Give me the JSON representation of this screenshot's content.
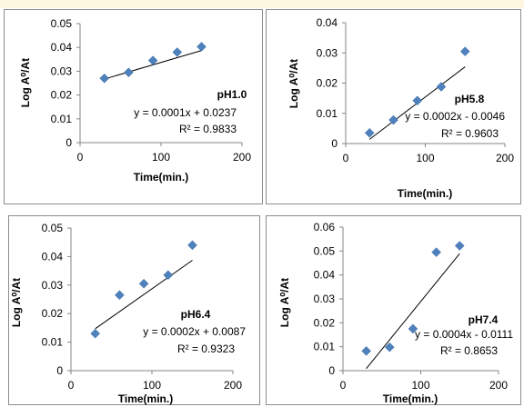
{
  "chart_data": [
    {
      "type": "scatter",
      "id": "ph1",
      "title": "pH1.0",
      "xlabel": "Time(min.)",
      "ylabel": "Log A⁰/At",
      "xlim": [
        0,
        200
      ],
      "ylim": [
        0,
        0.05
      ],
      "xticks": [
        "0",
        "100",
        "200"
      ],
      "yticks": [
        "0",
        "0.01",
        "0.02",
        "0.03",
        "0.04",
        "0.05"
      ],
      "x": [
        30,
        60,
        90,
        120,
        150
      ],
      "y": [
        0.027,
        0.0295,
        0.0345,
        0.038,
        0.0403
      ],
      "trendline": {
        "slope": 0.0001,
        "intercept": 0.0237,
        "x_range": [
          30,
          150
        ]
      },
      "equation": "y = 0.0001x + 0.0237",
      "r2": "R² = 0.9833",
      "marker_color": "#4f81bd",
      "grid": false
    },
    {
      "type": "scatter",
      "id": "ph58",
      "title": "pH5.8",
      "xlabel": "Time(min.)",
      "ylabel": "Log A⁰/At",
      "xlim": [
        0,
        200
      ],
      "ylim": [
        0,
        0.04
      ],
      "xticks": [
        "0",
        "100",
        "200"
      ],
      "yticks": [
        "0",
        "0.01",
        "0.02",
        "0.03",
        "0.04"
      ],
      "x": [
        30,
        60,
        90,
        120,
        150
      ],
      "y": [
        0.0035,
        0.0078,
        0.0142,
        0.0188,
        0.0305
      ],
      "trendline": {
        "slope": 0.0002,
        "intercept": -0.0046,
        "x_range": [
          30,
          150
        ]
      },
      "equation": "y = 0.0002x - 0.0046",
      "r2": "R² = 0.9603",
      "marker_color": "#4f81bd",
      "grid": false
    },
    {
      "type": "scatter",
      "id": "ph64",
      "title": "pH6.4",
      "xlabel": "Time(min.)",
      "ylabel": "Log A⁰/At",
      "xlim": [
        0,
        200
      ],
      "ylim": [
        0,
        0.05
      ],
      "xticks": [
        "0",
        "100",
        "200"
      ],
      "yticks": [
        "0",
        "0.01",
        "0.02",
        "0.03",
        "0.04",
        "0.05"
      ],
      "x": [
        30,
        60,
        90,
        120,
        150
      ],
      "y": [
        0.013,
        0.0265,
        0.0305,
        0.0335,
        0.044
      ],
      "trendline": {
        "slope": 0.0002,
        "intercept": 0.0087,
        "x_range": [
          30,
          150
        ]
      },
      "equation": "y = 0.0002x + 0.0087",
      "r2": "R² = 0.9323",
      "marker_color": "#4f81bd",
      "grid": false
    },
    {
      "type": "scatter",
      "id": "ph74",
      "title": "pH7.4",
      "xlabel": "Time(min.)",
      "ylabel": "Log A⁰/At",
      "xlim": [
        0,
        200
      ],
      "ylim": [
        0,
        0.06
      ],
      "xticks": [
        "0",
        "100",
        "200"
      ],
      "yticks": [
        "0",
        "0.01",
        "0.02",
        "0.03",
        "0.04",
        "0.05",
        "0.06"
      ],
      "x": [
        30,
        60,
        90,
        120,
        150
      ],
      "y": [
        0.0082,
        0.0098,
        0.0175,
        0.0495,
        0.0522
      ],
      "trendline": {
        "slope": 0.0004,
        "intercept": -0.0111,
        "x_range": [
          30,
          150
        ]
      },
      "equation": "y = 0.0004x - 0.0111",
      "r2": "R² = 0.8653",
      "marker_color": "#4f81bd",
      "grid": false
    }
  ]
}
